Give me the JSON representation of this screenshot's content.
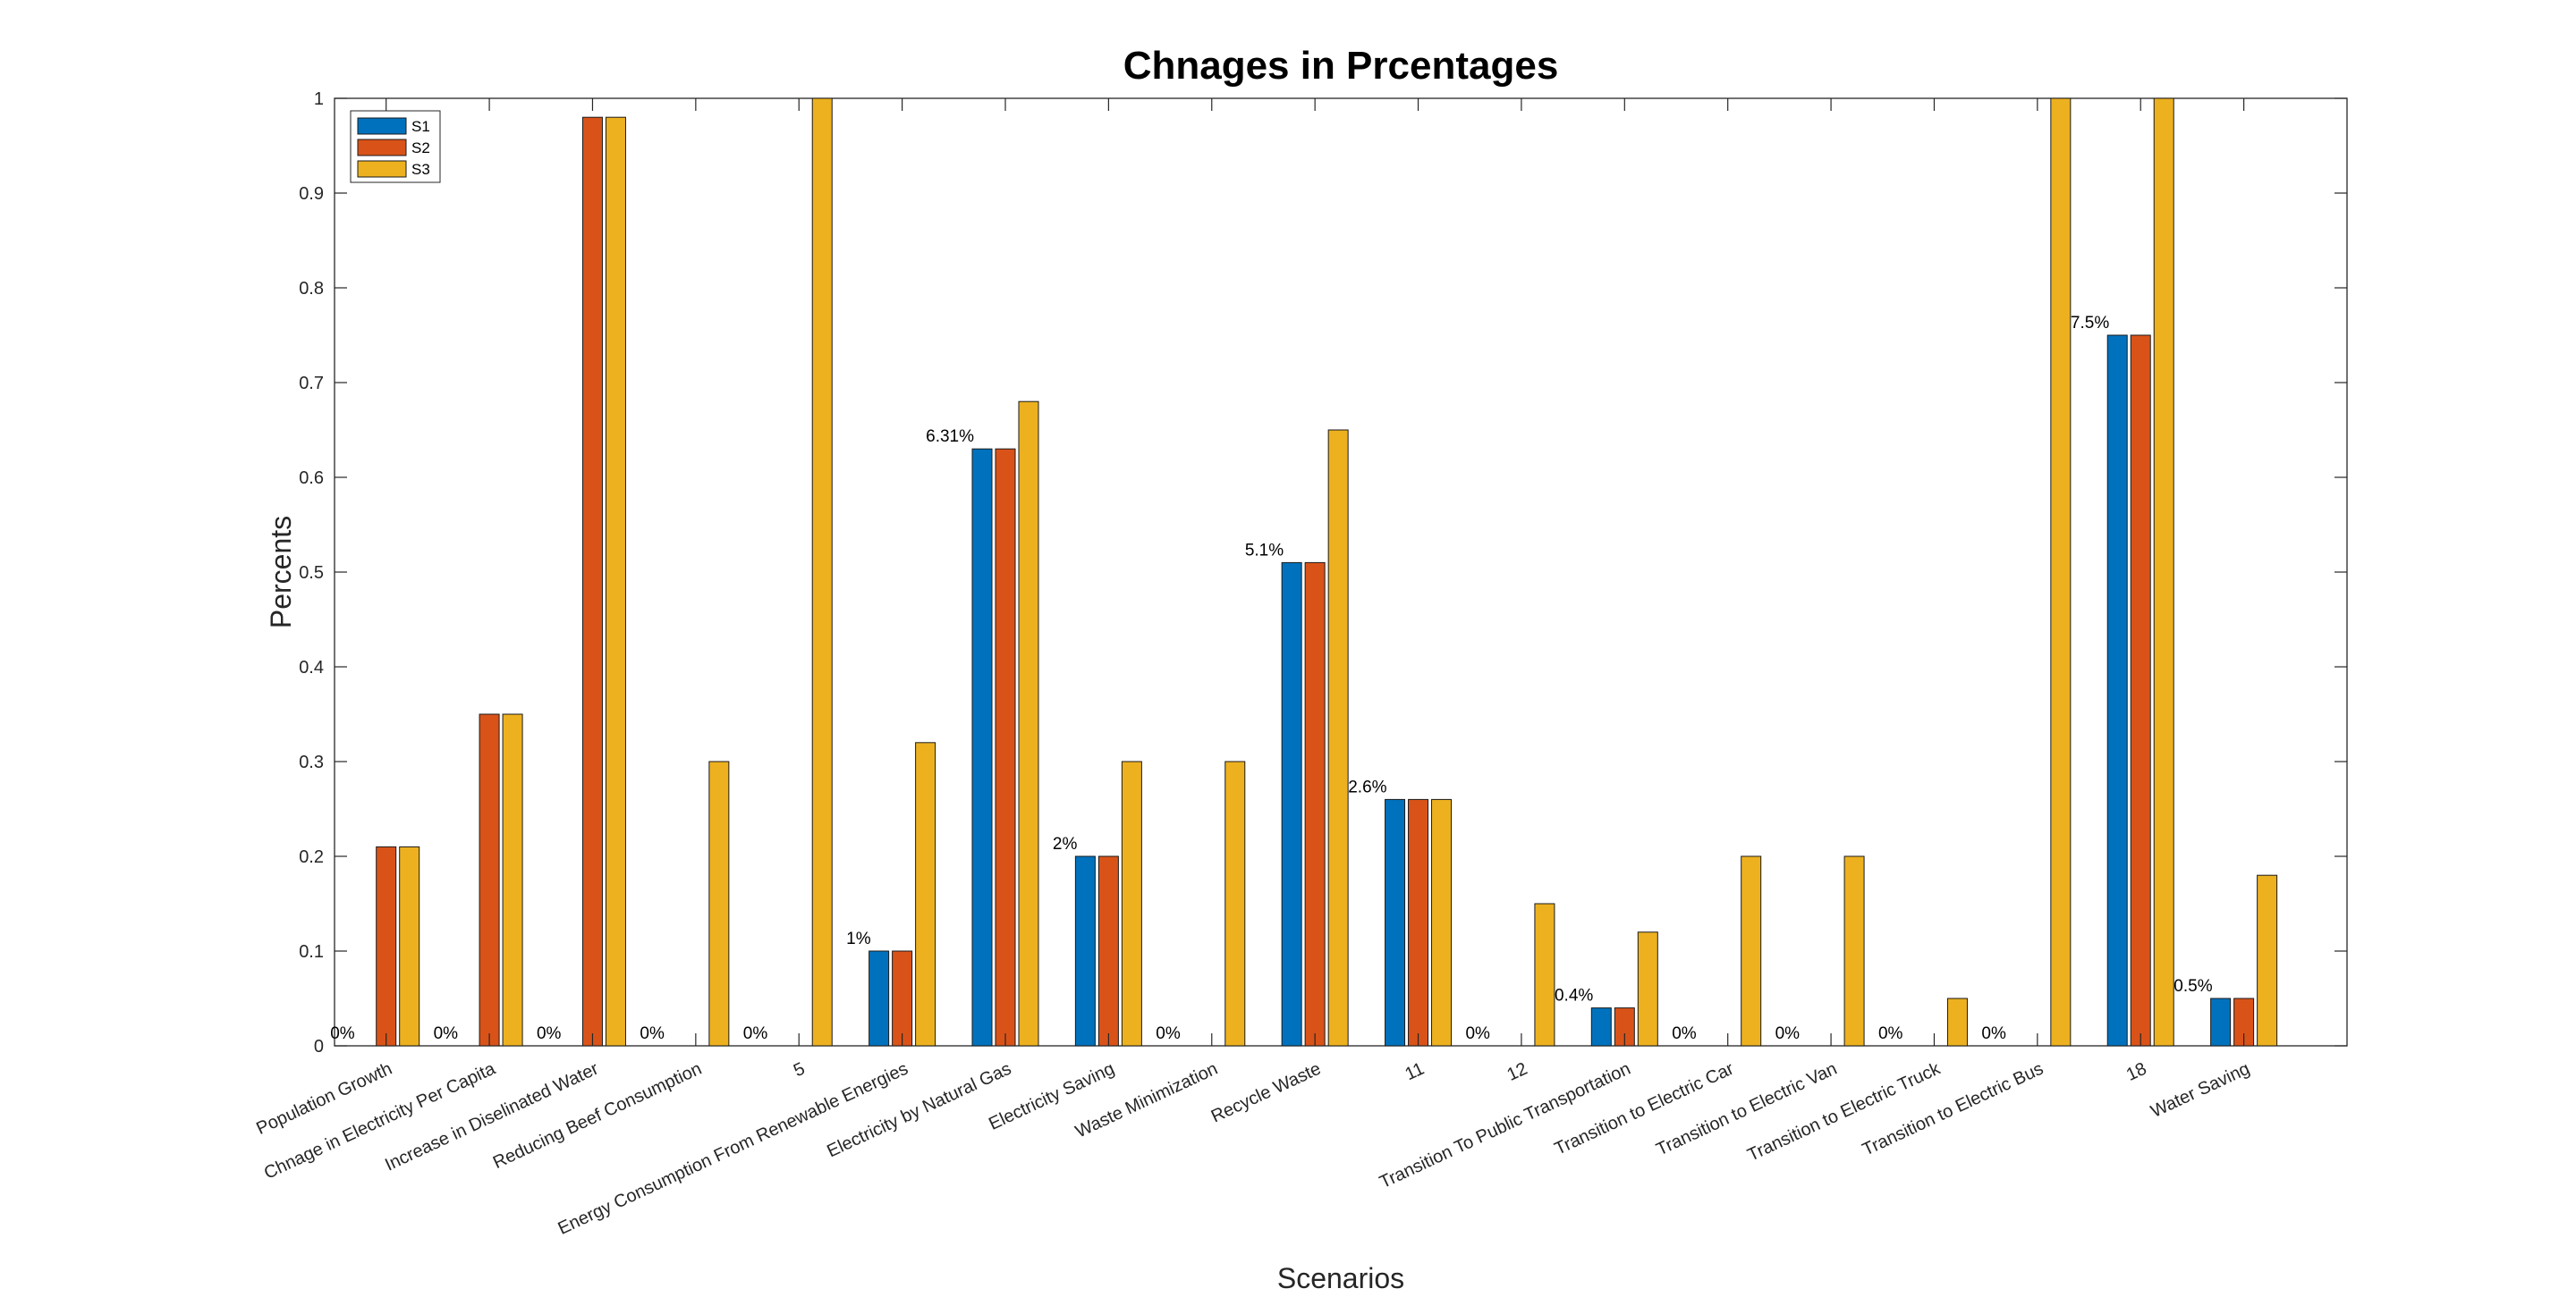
{
  "chart_data": {
    "type": "bar",
    "title": "Chnages in Prcentages",
    "xlabel": "Scenarios",
    "ylabel": "Percents",
    "ylim": [
      0,
      1
    ],
    "yticks": [
      "0",
      "0.1",
      "0.2",
      "0.3",
      "0.4",
      "0.5",
      "0.6",
      "0.7",
      "0.8",
      "0.9",
      "1"
    ],
    "grid": false,
    "legend_position": "top-left",
    "categories": [
      "Population Growth",
      "Chnage in Electricity Per Capita",
      "Increase in Diselinated Water",
      "Reducing Beef Consumption",
      "5",
      "Energy Consumption From Renewable Energies",
      "Electricity by Natural Gas",
      "Electricity Saving",
      "Waste Minimization",
      "Recycle Waste",
      "11",
      "12",
      "Transition To Public Transportation",
      "Transition to Electric Car",
      "Transition to Electric Van",
      "Transition to Electric Truck",
      "Transition to Electric Bus",
      "18",
      "Water Saving"
    ],
    "series": [
      {
        "name": "S1",
        "color": "#0072BD",
        "values": [
          0,
          0,
          0,
          0,
          0,
          0.1,
          0.63,
          0.2,
          0,
          0.51,
          0.26,
          0,
          0.04,
          0,
          0,
          0,
          0,
          0.75,
          0.05
        ]
      },
      {
        "name": "S2",
        "color": "#D95319",
        "values": [
          0.21,
          0.35,
          0.98,
          0,
          0,
          0.1,
          0.63,
          0.2,
          0,
          0.51,
          0.26,
          0,
          0.04,
          0,
          0,
          0,
          0,
          0.75,
          0.05
        ]
      },
      {
        "name": "S3",
        "color": "#EDB120",
        "values": [
          0.21,
          0.35,
          0.98,
          0.3,
          1.0,
          0.32,
          0.68,
          0.3,
          0.3,
          0.65,
          0.26,
          0.15,
          0.12,
          0.2,
          0.2,
          0.05,
          1.0,
          1.0,
          0.18
        ]
      }
    ],
    "data_labels": [
      "0%",
      "0%",
      "0%",
      "0%",
      "0%",
      "1%",
      "6.31%",
      "2%",
      "0%",
      "5.1%",
      "2.6%",
      "0%",
      "0.4%",
      "0%",
      "0%",
      "0%",
      "0%",
      "7.5%",
      "0.5%"
    ]
  }
}
